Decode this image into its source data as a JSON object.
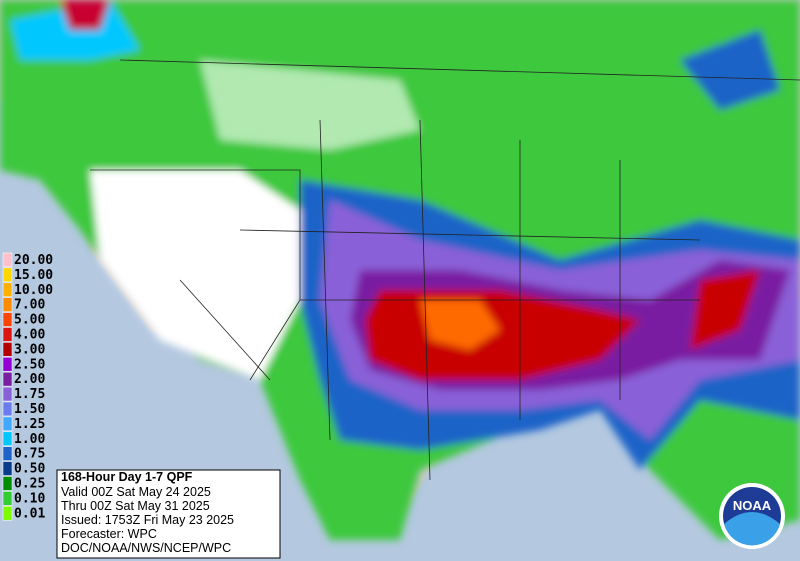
{
  "legend": {
    "items": [
      {
        "label": "20.00",
        "color": "#ffc0cb"
      },
      {
        "label": "15.00",
        "color": "#ffd700"
      },
      {
        "label": "10.00",
        "color": "#ffb000"
      },
      {
        "label": "7.00",
        "color": "#ff8c00"
      },
      {
        "label": "5.00",
        "color": "#ff4500"
      },
      {
        "label": "4.00",
        "color": "#dc1414"
      },
      {
        "label": "3.00",
        "color": "#b40000"
      },
      {
        "label": "2.50",
        "color": "#9400d3"
      },
      {
        "label": "2.00",
        "color": "#7a1fa2"
      },
      {
        "label": "1.75",
        "color": "#8a60d8"
      },
      {
        "label": "1.50",
        "color": "#6b7cf0"
      },
      {
        "label": "1.25",
        "color": "#40a8ff"
      },
      {
        "label": "1.00",
        "color": "#00c8ff"
      },
      {
        "label": "0.75",
        "color": "#1e64c8"
      },
      {
        "label": "0.50",
        "color": "#0a3c8c"
      },
      {
        "label": "0.25",
        "color": "#008c00"
      },
      {
        "label": "0.10",
        "color": "#32cd32"
      },
      {
        "label": "0.01",
        "color": "#7cfc00"
      }
    ]
  },
  "info": {
    "title": "168-Hour Day 1-7 QPF",
    "lines": [
      "Valid 00Z Sat May 24 2025",
      "Thru 00Z Sat May 31 2025",
      "Issued: 1753Z Fri May 23 2025",
      "Forecaster: WPC",
      "DOC/NOAA/NWS/NCEP/WPC"
    ]
  },
  "logo": {
    "text": "NOAA"
  }
}
